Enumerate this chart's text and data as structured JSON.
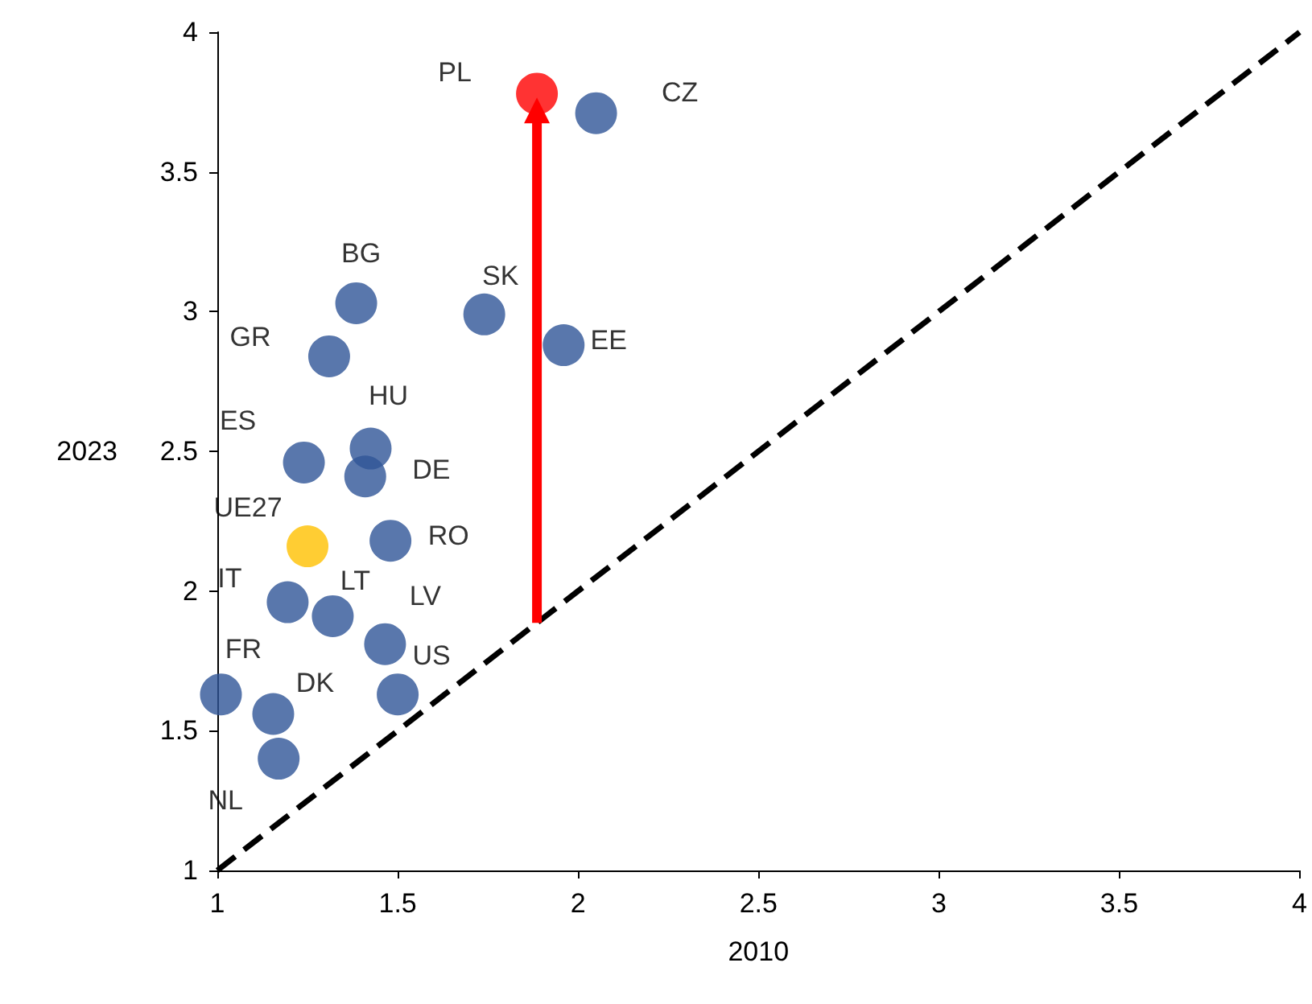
{
  "chart_data": {
    "type": "scatter",
    "xlabel": "2010",
    "ylabel": "2023",
    "xlim": [
      1,
      4
    ],
    "xticks": [
      1,
      1.5,
      2,
      2.5,
      3,
      3.5,
      4
    ],
    "ylim": [
      1,
      4
    ],
    "yticks": [
      1,
      1.5,
      2,
      2.5,
      3,
      3.5,
      4
    ],
    "grid": false,
    "legend": false,
    "marker": "circle",
    "series": [
      {
        "type": "line",
        "color": "#000000",
        "line_style": "dashed",
        "marker": "none",
        "x": [
          1,
          4
        ],
        "values": [
          1,
          4
        ]
      },
      {
        "type": "line",
        "color": "#ff0000",
        "line_style": "solid",
        "marker": "triangle",
        "x": [
          1.886,
          1.886
        ],
        "values": [
          1.886,
          3.72
        ]
      },
      {
        "name": "PL",
        "color": "#ff0000",
        "x": [
          1.886
        ],
        "values": [
          3.78
        ]
      },
      {
        "name": "CZ",
        "color": "#2f5597",
        "x": [
          2.05
        ],
        "values": [
          3.71
        ]
      },
      {
        "name": "BG",
        "color": "#2f5597",
        "x": [
          1.385
        ],
        "values": [
          3.03
        ]
      },
      {
        "name": "SK",
        "color": "#2f5597",
        "x": [
          1.74
        ],
        "values": [
          2.99
        ]
      },
      {
        "name": "EE",
        "color": "#2f5597",
        "x": [
          1.96
        ],
        "values": [
          2.88
        ]
      },
      {
        "name": "GR",
        "color": "#2f5597",
        "x": [
          1.31
        ],
        "values": [
          2.84
        ]
      },
      {
        "name": "HU",
        "color": "#2f5597",
        "x": [
          1.425
        ],
        "values": [
          2.51
        ]
      },
      {
        "name": "ES",
        "color": "#2f5597",
        "x": [
          1.24
        ],
        "values": [
          2.46
        ]
      },
      {
        "name": "DE",
        "color": "#2f5597",
        "x": [
          1.41
        ],
        "values": [
          2.41
        ]
      },
      {
        "name": "RO",
        "color": "#2f5597",
        "x": [
          1.48
        ],
        "values": [
          2.18
        ]
      },
      {
        "name": "UE27",
        "color": "#ffc000",
        "x": [
          1.25
        ],
        "values": [
          2.16
        ]
      },
      {
        "name": "IT",
        "color": "#2f5597",
        "x": [
          1.195
        ],
        "values": [
          1.96
        ]
      },
      {
        "name": "LT",
        "color": "#2f5597",
        "x": [
          1.32
        ],
        "values": [
          1.91
        ]
      },
      {
        "name": "LV",
        "color": "#2f5597",
        "x": [
          1.465
        ],
        "values": [
          1.81
        ]
      },
      {
        "name": "US",
        "color": "#2f5597",
        "x": [
          1.5
        ],
        "values": [
          1.63
        ]
      },
      {
        "name": "FR",
        "color": "#2f5597",
        "x": [
          1.01
        ],
        "values": [
          1.63
        ]
      },
      {
        "name": "DK",
        "color": "#2f5597",
        "x": [
          1.155
        ],
        "values": [
          1.56
        ]
      },
      {
        "name": "NL",
        "color": "#2f5597",
        "x": [
          1.17
        ],
        "values": [
          1.4
        ]
      }
    ]
  }
}
